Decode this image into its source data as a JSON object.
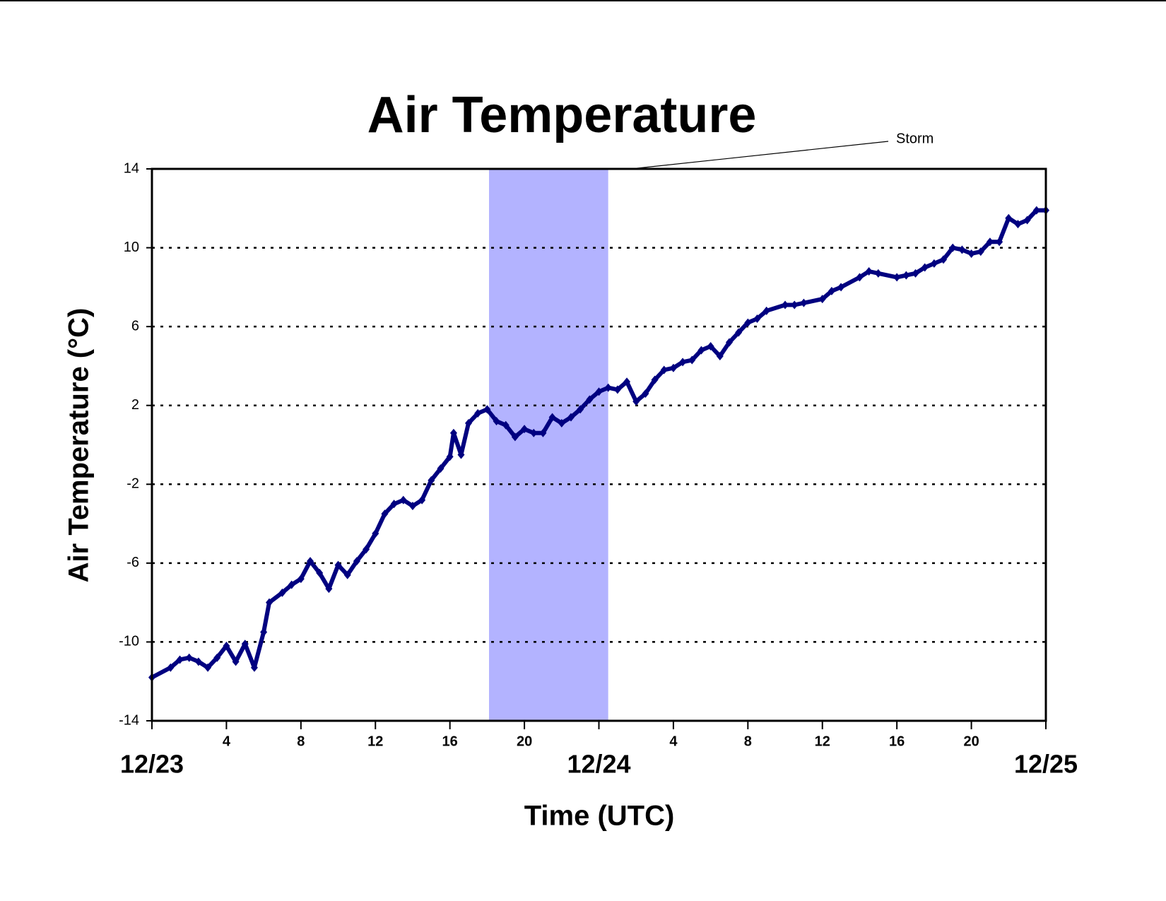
{
  "chart_data": {
    "type": "line",
    "title": "Air Temperature",
    "x_label": "Time (UTC)",
    "y_label": "Air Temperature (°C)",
    "xlim": [
      0,
      48
    ],
    "ylim": [
      -14,
      14
    ],
    "xticks": [
      {
        "value": 0,
        "label": "12/23"
      },
      4,
      8,
      12,
      16,
      20,
      {
        "value": 24,
        "label": "12/24"
      },
      {
        "value": 28,
        "label": "4"
      },
      {
        "value": 32,
        "label": "8"
      },
      {
        "value": 36,
        "label": "12"
      },
      {
        "value": 40,
        "label": "16"
      },
      {
        "value": 44,
        "label": "20"
      },
      {
        "value": 48,
        "label": "12/25"
      }
    ],
    "yticks": [
      -14,
      -10,
      -6,
      -2,
      2,
      6,
      10,
      14
    ],
    "grid": true,
    "annotations": [
      {
        "text": "Storm",
        "x_range": [
          18.1,
          24.5
        ],
        "color": "#b3b3ff"
      }
    ],
    "series": [
      {
        "color": "#000080",
        "x": [
          0,
          1,
          1.5,
          2,
          2.5,
          3,
          3.5,
          4,
          4.5,
          5,
          5.5,
          6,
          6.3,
          7,
          7.5,
          8,
          8.5,
          9,
          9.5,
          10,
          10.5,
          11,
          11.5,
          12,
          12.5,
          13,
          13.5,
          14,
          14.5,
          15,
          15.5,
          16,
          16.2,
          16.6,
          17,
          17.5,
          18,
          18.5,
          19,
          19.5,
          20,
          20.5,
          21,
          21.5,
          22,
          22.5,
          23,
          23.5,
          24,
          24.5,
          25,
          25.5,
          26,
          26.5,
          27,
          27.5,
          28,
          28.5,
          29,
          29.5,
          30,
          30.5,
          31,
          31.5,
          32,
          32.5,
          33,
          34,
          34.5,
          35,
          36,
          36.5,
          37,
          38,
          38.5,
          39,
          40,
          40.5,
          41,
          41.5,
          42,
          42.5,
          43,
          43.5,
          44,
          44.5,
          45,
          45.5,
          46,
          46.5,
          47,
          47.5,
          48
        ],
        "values": [
          -11.8,
          -11.3,
          -10.9,
          -10.8,
          -11.0,
          -11.3,
          -10.8,
          -10.2,
          -11.0,
          -10.1,
          -11.3,
          -9.5,
          -8.0,
          -7.5,
          -7.1,
          -6.8,
          -5.9,
          -6.5,
          -7.3,
          -6.1,
          -6.6,
          -5.9,
          -5.3,
          -4.5,
          -3.5,
          -3.0,
          -2.8,
          -3.1,
          -2.8,
          -1.8,
          -1.2,
          -0.6,
          0.6,
          -0.5,
          1.1,
          1.6,
          1.8,
          1.2,
          1.0,
          0.4,
          0.8,
          0.6,
          0.6,
          1.4,
          1.1,
          1.4,
          1.8,
          2.3,
          2.7,
          2.9,
          2.8,
          3.2,
          2.2,
          2.6,
          3.3,
          3.8,
          3.9,
          4.2,
          4.3,
          4.8,
          5.0,
          4.5,
          5.2,
          5.7,
          6.2,
          6.4,
          6.8,
          7.1,
          7.1,
          7.2,
          7.4,
          7.8,
          8.0,
          8.5,
          8.8,
          8.7,
          8.5,
          8.6,
          8.7,
          9.0,
          9.2,
          9.4,
          10.0,
          9.9,
          9.7,
          9.8,
          10.3,
          10.3,
          11.5,
          11.2,
          11.4,
          11.9,
          11.9
        ]
      }
    ]
  }
}
